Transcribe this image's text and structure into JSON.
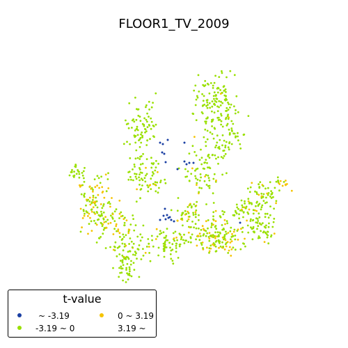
{
  "chart_data": {
    "type": "scatter",
    "title": "FLOOR1_TV_2009",
    "legend": {
      "title": "t-value",
      "placement": "bottom-left",
      "entries": [
        {
          "label": "~ -3.19",
          "color": "#1a3fa3",
          "class": "low"
        },
        {
          "label": "0 ~ 3.19",
          "color": "#f5c400",
          "class": "mid_pos"
        },
        {
          "label": "-3.19 ~ 0",
          "color": "#99e000",
          "class": "mid_neg"
        },
        {
          "label": "3.19 ~",
          "color": "",
          "class": "high"
        }
      ]
    },
    "colors": {
      "low": "#1a3fa3",
      "mid_neg": "#99e000",
      "mid_pos": "#f5c400"
    },
    "grid": false,
    "axes_visible": false
  }
}
